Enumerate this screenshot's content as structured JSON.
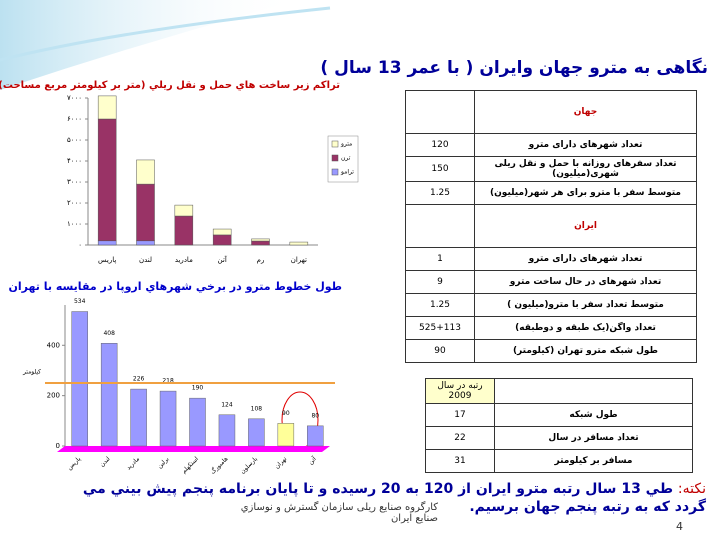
{
  "title": "نگاهی به مترو جهان وایران ( با عمر 13 سال )",
  "chart_data": [
    {
      "type": "stacked-bar",
      "title": "تراكم زير ساخت هاي حمل و نقل ريلي (متر بر كيلومتر مربع مساحت)",
      "categories": [
        "پاریس",
        "لندن",
        "مادرید",
        "آتن",
        "رم",
        "تهران"
      ],
      "series": [
        {
          "name": "ترامو",
          "color": "#9999ff",
          "values": [
            200,
            200,
            0,
            0,
            0,
            0
          ]
        },
        {
          "name": "ترن",
          "color": "#993366",
          "values": [
            5800,
            2700,
            1380,
            480,
            190,
            0
          ]
        },
        {
          "name": "مترو",
          "color": "#ffffcc",
          "values": [
            1100,
            1150,
            520,
            280,
            100,
            140
          ]
        }
      ],
      "ylim": [
        0,
        7000
      ],
      "yticks": [
        {
          "value": 0,
          "label": "۰"
        },
        {
          "value": 1000,
          "label": "۱۰۰۰"
        },
        {
          "value": 2000,
          "label": "۲۰۰۰"
        },
        {
          "value": 3000,
          "label": "۳۰۰۰"
        },
        {
          "value": 4000,
          "label": "۴۰۰۰"
        },
        {
          "value": 5000,
          "label": "۵۰۰۰"
        },
        {
          "value": 6000,
          "label": "۶۰۰۰"
        },
        {
          "value": 7000,
          "label": "۷۰۰۰"
        }
      ],
      "legend": "right"
    },
    {
      "type": "bar",
      "title": "طول خطوط مترو در برخي شهرهاي اروپا در مقايسه با تهران",
      "y_label": "کیلومتر",
      "categories": [
        "پاریس",
        "لندن",
        "مادرید",
        "برلین",
        "استکهلم",
        "هامبورگ",
        "بارسلون",
        "تهران",
        "آتن"
      ],
      "values": [
        534,
        408,
        226,
        218,
        190,
        124,
        108,
        90,
        80
      ],
      "colors": [
        "#9999ff",
        "#9999ff",
        "#9999ff",
        "#9999ff",
        "#9999ff",
        "#9999ff",
        "#9999ff",
        "#ffff99",
        "#9999ff"
      ],
      "reference_line": {
        "value": 250,
        "color": "#f0a040"
      },
      "ylim": [
        0,
        560
      ],
      "yticks": [
        0,
        200,
        400
      ]
    }
  ],
  "table1": {
    "sections": [
      {
        "title": "جهان",
        "rows": [
          [
            "تعداد شهرهای دارای مترو",
            "120"
          ],
          [
            "تعداد سفرهای روزانه با حمل و نقل ریلی شهری(میلیون)",
            "150"
          ],
          [
            "متوسط سفر با مترو برای هر شهر(میلیون)",
            "1.25"
          ]
        ]
      },
      {
        "title": "ایران",
        "rows": [
          [
            "تعداد شهرهای دارای مترو",
            "1"
          ],
          [
            "تعداد شهرهای در حال ساخت مترو",
            "9"
          ],
          [
            "متوسط تعداد سفر با مترو(میلیون )",
            "1.25"
          ],
          [
            "تعداد واگن(یک طبقه و دوطبقه)",
            "525+113"
          ],
          [
            "طول شبکه مترو تهران (کیلومتر)",
            "90"
          ]
        ]
      }
    ]
  },
  "table2": {
    "header": "رتبه در سال 2009",
    "rows": [
      [
        "طول شبکه",
        "17"
      ],
      [
        "تعداد مسافر در سال",
        "22"
      ],
      [
        "مسافر بر کیلومتر",
        "31"
      ]
    ]
  },
  "note": {
    "label": "نکته:",
    "text": "طي 13 سال رتبه مترو ايران از 120 به 20 رسيده و تا پايان برنامه پنجم پيش بيني مي گردد كه به رتبه پنجم جهان برسيم."
  },
  "footer": "کارگروه صنایع ریلی سازمان گسترش و نوسازي صنايع ايران",
  "page_number": "4"
}
